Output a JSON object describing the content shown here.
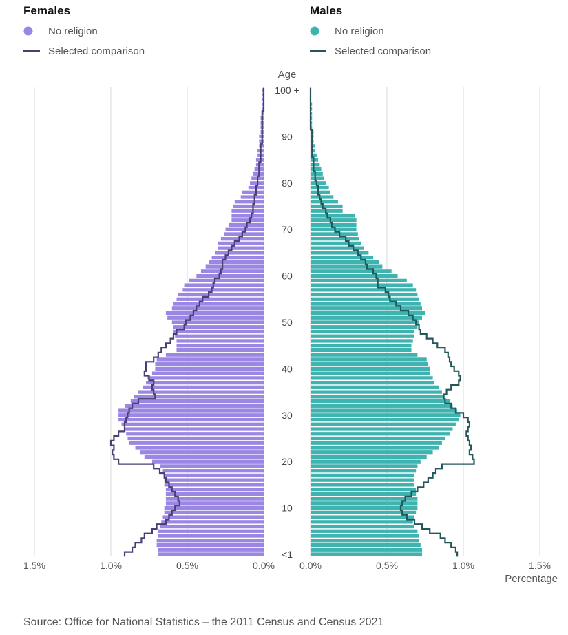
{
  "chart_data": {
    "type": "bar",
    "subtype": "population-pyramid",
    "y_axis_label": "Age",
    "x_axis_label": "Percentage",
    "age_tick_labels": [
      "<1",
      "10",
      "20",
      "30",
      "40",
      "50",
      "60",
      "70",
      "80",
      "90",
      "100 +"
    ],
    "age_tick_values": [
      0,
      10,
      20,
      30,
      40,
      50,
      60,
      70,
      80,
      90,
      100
    ],
    "x_tick_labels_left": [
      "1.5%",
      "1.0%",
      "0.5%",
      "0.0%"
    ],
    "x_tick_labels_right": [
      "0.0%",
      "0.5%",
      "1.0%",
      "1.5%"
    ],
    "x_tick_values_left": [
      1.5,
      1.0,
      0.5,
      0.0
    ],
    "x_tick_values_right": [
      0.0,
      0.5,
      1.0,
      1.5
    ],
    "xlim": [
      0,
      1.5
    ],
    "grid": true,
    "legend_placement": "top",
    "panels": [
      {
        "title": "Females",
        "side": "left",
        "bar_color": "#9b87e3",
        "line_color": "#4a3f73",
        "series": [
          {
            "name": "No religion",
            "kind": "bar",
            "values": [
              0.69,
              0.69,
              0.7,
              0.7,
              0.69,
              0.69,
              0.68,
              0.67,
              0.66,
              0.65,
              0.65,
              0.64,
              0.64,
              0.64,
              0.64,
              0.65,
              0.65,
              0.65,
              0.66,
              0.68,
              0.73,
              0.78,
              0.81,
              0.84,
              0.88,
              0.89,
              0.9,
              0.91,
              0.93,
              0.95,
              0.95,
              0.95,
              0.91,
              0.87,
              0.85,
              0.82,
              0.79,
              0.77,
              0.76,
              0.73,
              0.71,
              0.71,
              0.7,
              0.64,
              0.57,
              0.57,
              0.57,
              0.58,
              0.59,
              0.59,
              0.6,
              0.63,
              0.64,
              0.6,
              0.59,
              0.57,
              0.56,
              0.53,
              0.52,
              0.49,
              0.44,
              0.41,
              0.38,
              0.36,
              0.34,
              0.32,
              0.3,
              0.3,
              0.28,
              0.26,
              0.25,
              0.23,
              0.21,
              0.21,
              0.21,
              0.2,
              0.19,
              0.15,
              0.14,
              0.1,
              0.09,
              0.08,
              0.07,
              0.06,
              0.05,
              0.05,
              0.04,
              0.04,
              0.03,
              0.03,
              0.03,
              0.02,
              0.02,
              0.02,
              0.02,
              0.01,
              0.01,
              0.01,
              0.01,
              0.01,
              0.01
            ]
          },
          {
            "name": "Selected comparison",
            "kind": "line",
            "values": [
              0.91,
              0.86,
              0.84,
              0.8,
              0.78,
              0.73,
              0.7,
              0.64,
              0.62,
              0.6,
              0.58,
              0.55,
              0.56,
              0.58,
              0.6,
              0.62,
              0.64,
              0.65,
              0.68,
              0.72,
              0.95,
              0.98,
              0.99,
              0.98,
              1.0,
              0.98,
              0.95,
              0.91,
              0.91,
              0.9,
              0.89,
              0.88,
              0.86,
              0.82,
              0.71,
              0.72,
              0.73,
              0.72,
              0.75,
              0.78,
              0.77,
              0.77,
              0.72,
              0.69,
              0.67,
              0.64,
              0.61,
              0.59,
              0.57,
              0.52,
              0.51,
              0.48,
              0.46,
              0.44,
              0.42,
              0.4,
              0.36,
              0.34,
              0.33,
              0.32,
              0.29,
              0.28,
              0.27,
              0.27,
              0.25,
              0.23,
              0.21,
              0.19,
              0.16,
              0.14,
              0.12,
              0.11,
              0.09,
              0.08,
              0.07,
              0.07,
              0.06,
              0.06,
              0.05,
              0.05,
              0.04,
              0.04,
              0.03,
              0.03,
              0.03,
              0.02,
              0.02,
              0.02,
              0.02,
              0.01,
              0.01,
              0.01,
              0.01,
              0.01,
              0.01,
              0.01,
              0.0,
              0.0,
              0.0,
              0.0,
              0.0
            ]
          }
        ]
      },
      {
        "title": "Males",
        "side": "right",
        "bar_color": "#3fb3b0",
        "line_color": "#23575b",
        "series": [
          {
            "name": "No religion",
            "kind": "bar",
            "values": [
              0.73,
              0.73,
              0.72,
              0.71,
              0.71,
              0.7,
              0.68,
              0.67,
              0.68,
              0.69,
              0.7,
              0.7,
              0.7,
              0.69,
              0.69,
              0.68,
              0.68,
              0.68,
              0.69,
              0.7,
              0.72,
              0.76,
              0.8,
              0.84,
              0.86,
              0.88,
              0.91,
              0.93,
              0.95,
              0.97,
              0.98,
              0.96,
              0.93,
              0.91,
              0.88,
              0.86,
              0.84,
              0.81,
              0.8,
              0.78,
              0.78,
              0.77,
              0.76,
              0.7,
              0.66,
              0.66,
              0.67,
              0.68,
              0.68,
              0.7,
              0.71,
              0.73,
              0.75,
              0.73,
              0.72,
              0.71,
              0.7,
              0.69,
              0.67,
              0.63,
              0.57,
              0.53,
              0.47,
              0.45,
              0.41,
              0.38,
              0.35,
              0.33,
              0.32,
              0.31,
              0.3,
              0.3,
              0.3,
              0.29,
              0.21,
              0.21,
              0.18,
              0.15,
              0.13,
              0.12,
              0.1,
              0.09,
              0.08,
              0.07,
              0.06,
              0.05,
              0.04,
              0.03,
              0.03,
              0.02,
              0.02,
              0.02,
              0.01,
              0.01,
              0.01,
              0.01,
              0.01,
              0.01,
              0.0,
              0.0,
              0.0
            ]
          },
          {
            "name": "Selected comparison",
            "kind": "line",
            "values": [
              0.96,
              0.95,
              0.92,
              0.88,
              0.85,
              0.78,
              0.73,
              0.68,
              0.63,
              0.6,
              0.59,
              0.6,
              0.62,
              0.66,
              0.7,
              0.74,
              0.77,
              0.8,
              0.82,
              0.86,
              1.07,
              1.06,
              1.04,
              1.05,
              1.04,
              1.03,
              1.02,
              1.03,
              1.04,
              1.03,
              1.0,
              0.95,
              0.92,
              0.88,
              0.87,
              0.89,
              0.92,
              0.97,
              0.98,
              0.97,
              0.94,
              0.92,
              0.91,
              0.9,
              0.88,
              0.83,
              0.8,
              0.76,
              0.72,
              0.71,
              0.69,
              0.67,
              0.64,
              0.59,
              0.56,
              0.52,
              0.51,
              0.49,
              0.44,
              0.44,
              0.43,
              0.41,
              0.37,
              0.36,
              0.33,
              0.31,
              0.28,
              0.25,
              0.23,
              0.19,
              0.16,
              0.14,
              0.13,
              0.11,
              0.1,
              0.08,
              0.07,
              0.06,
              0.05,
              0.05,
              0.04,
              0.03,
              0.03,
              0.02,
              0.02,
              0.02,
              0.01,
              0.01,
              0.01,
              0.01,
              0.01,
              0.01,
              0.0,
              0.0,
              0.0,
              0.0,
              0.0,
              0.0,
              0.0,
              0.0,
              0.0
            ]
          }
        ]
      }
    ]
  },
  "source": "Source: Office for National Statistics – the 2011 Census and Census 2021"
}
